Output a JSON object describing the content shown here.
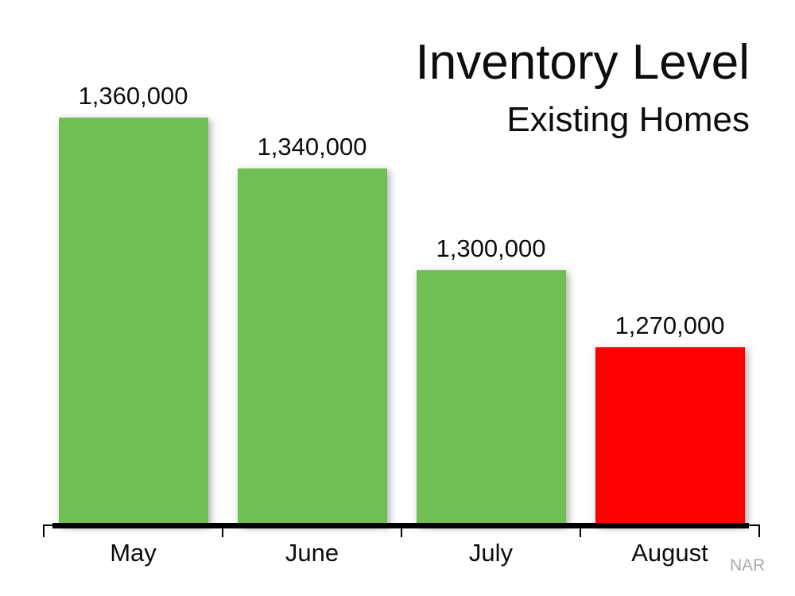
{
  "title": {
    "main": "Inventory Level",
    "subtitle": "Existing Homes"
  },
  "watermark": "NAR",
  "colors": {
    "bar_green": "#70BF55",
    "bar_red": "#FF0000",
    "axis_black": "#000000",
    "watermark_gray": "#A9ABAC",
    "background": "#FFFFFF"
  },
  "chart_data": {
    "type": "bar",
    "title": "Inventory Level",
    "subtitle": "Existing Homes",
    "categories": [
      "May",
      "June",
      "July",
      "August"
    ],
    "values": [
      1360000,
      1340000,
      1300000,
      1270000
    ],
    "value_labels": [
      "1,360,000",
      "1,340,000",
      "1,300,000",
      "1,270,000"
    ],
    "bar_colors": [
      "#70BF55",
      "#70BF55",
      "#70BF55",
      "#FF0000"
    ],
    "xlabel": "",
    "ylabel": "",
    "ylim": [
      1200000,
      1380000
    ],
    "grid": false,
    "legend": false,
    "y_axis_shown": false,
    "data_labels_position": "above-bars",
    "source_label": "NAR"
  }
}
